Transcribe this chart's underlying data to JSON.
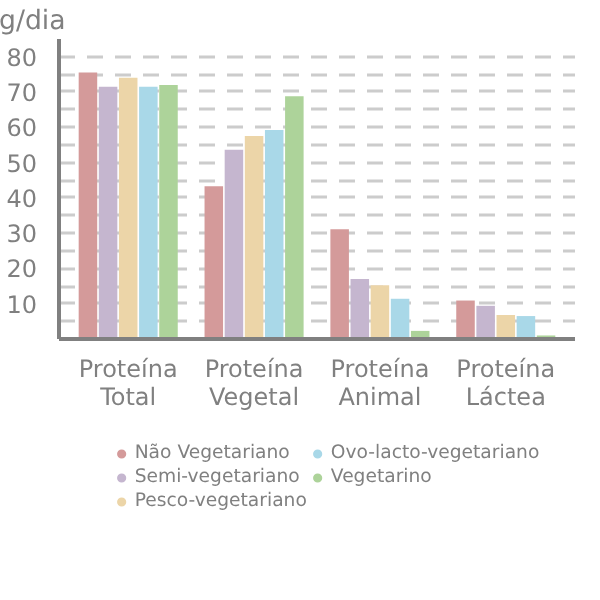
{
  "chart_data": {
    "type": "bar",
    "ylabel": "g/dia",
    "categories": [
      "Proteína\nTotal",
      "Proteína\nVegetal",
      "Proteína\nAnimal",
      "Proteína\nLáctea"
    ],
    "series": [
      {
        "name": "Não Vegetariano",
        "color": "#d49a9a",
        "values": [
          75.5,
          43.3,
          31.1,
          10.9
        ]
      },
      {
        "name": "Semi-vegetariano",
        "color": "#c5b6cf",
        "values": [
          71.5,
          53.6,
          17,
          9.4
        ]
      },
      {
        "name": "Pesco-vegetariano",
        "color": "#ecd5a8",
        "values": [
          74,
          57.5,
          15.2,
          6.8
        ]
      },
      {
        "name": "Ovo-lacto-vegetariano",
        "color": "#a9d8e8",
        "values": [
          71.5,
          59.2,
          11.4,
          6.5
        ]
      },
      {
        "name": "Vegetarino",
        "color": "#add39a",
        "values": [
          72,
          68.8,
          2.3,
          1
        ]
      }
    ],
    "ylim": [
      0,
      85
    ],
    "yticks": [
      {
        "value": 5,
        "label": null
      },
      10,
      {
        "value": 15,
        "label": null
      },
      20,
      {
        "value": 25,
        "label": null
      },
      30,
      {
        "value": 35,
        "label": null
      },
      40,
      {
        "value": 45,
        "label": null
      },
      50,
      {
        "value": 55,
        "label": null
      },
      60,
      {
        "value": 65,
        "label": null
      },
      70,
      {
        "value": 75,
        "label": null
      },
      80
    ],
    "grid": "y",
    "legend": "bottom"
  }
}
